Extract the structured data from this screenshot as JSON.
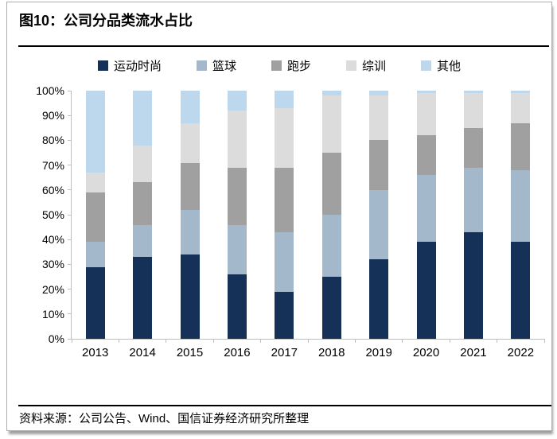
{
  "figure": {
    "title": "图10：公司分品类流水占比",
    "source": "资料来源：公司公告、Wind、国信证券经济研究所整理"
  },
  "colors": {
    "axis": "#bfbfbf",
    "rule": "#000000",
    "card_border": "#aeaeae"
  },
  "chart_data": {
    "type": "bar",
    "stacked": true,
    "orientation": "vertical",
    "title": "公司分品类流水占比",
    "xlabel": "",
    "ylabel": "",
    "ylim": [
      0,
      100
    ],
    "grid": false,
    "legend_position": "top",
    "y_ticks": [
      "0%",
      "10%",
      "20%",
      "30%",
      "40%",
      "50%",
      "60%",
      "70%",
      "80%",
      "90%",
      "100%"
    ],
    "categories": [
      "2013",
      "2014",
      "2015",
      "2016",
      "2017",
      "2018",
      "2019",
      "2020",
      "2021",
      "2022"
    ],
    "series": [
      {
        "name": "运动时尚",
        "color": "#153158",
        "values": [
          29,
          33,
          34,
          26,
          19,
          25,
          32,
          39,
          43,
          39
        ]
      },
      {
        "name": "篮球",
        "color": "#a3b8cb",
        "values": [
          10,
          13,
          18,
          20,
          24,
          25,
          28,
          27,
          26,
          29
        ]
      },
      {
        "name": "跑步",
        "color": "#a0a0a0",
        "values": [
          20,
          17,
          19,
          23,
          26,
          25,
          20,
          16,
          16,
          19
        ]
      },
      {
        "name": "综训",
        "color": "#dcdcdc",
        "values": [
          8,
          15,
          16,
          23,
          24,
          23,
          18,
          17,
          14,
          12
        ]
      },
      {
        "name": "其他",
        "color": "#bdd7ec",
        "values": [
          33,
          22,
          13,
          8,
          7,
          2,
          2,
          1,
          1,
          1
        ]
      }
    ]
  }
}
